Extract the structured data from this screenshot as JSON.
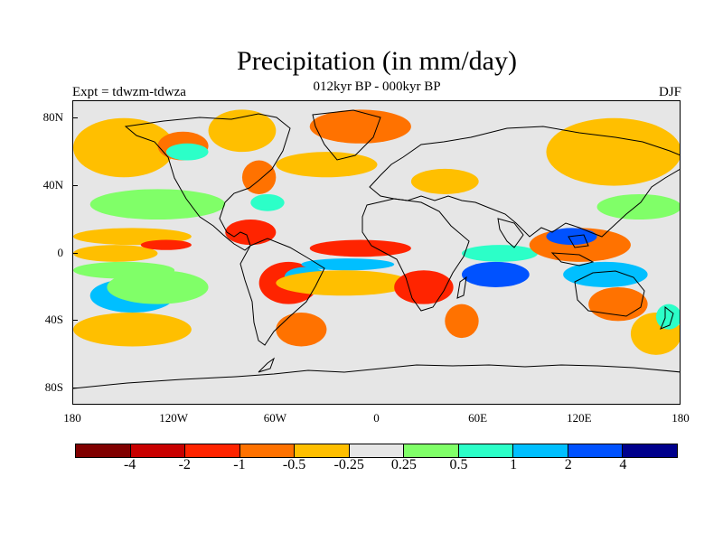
{
  "title": "Precipitation (in mm/day)",
  "subtitle": "012kyr BP - 000kyr BP",
  "left_string": "Expt = tdwzm-tdwza",
  "right_string": "DJF",
  "y_axis_labels": [
    {
      "text": "80N",
      "lat": 80
    },
    {
      "text": "40N",
      "lat": 40
    },
    {
      "text": "0",
      "lat": 0
    },
    {
      "text": "40S",
      "lat": -40
    },
    {
      "text": "80S",
      "lat": -80
    }
  ],
  "x_axis_labels": [
    {
      "text": "180",
      "lon": -180
    },
    {
      "text": "120W",
      "lon": -120
    },
    {
      "text": "60W",
      "lon": -60
    },
    {
      "text": "0",
      "lon": 0
    },
    {
      "text": "60E",
      "lon": 60
    },
    {
      "text": "120E",
      "lon": 120
    },
    {
      "text": "180",
      "lon": 180
    }
  ],
  "colorbar": {
    "colors": [
      "#800000",
      "#c80000",
      "#ff2400",
      "#ff7200",
      "#ffbf00",
      "#e6e6e6",
      "#80ff68",
      "#2cffc8",
      "#00bfff",
      "#0052ff",
      "#00008c"
    ],
    "labels": [
      "-4",
      "-2",
      "-1",
      "-0.5",
      "-0.25",
      "0.25",
      "0.5",
      "1",
      "2",
      "4"
    ]
  },
  "chart_data": {
    "type": "heatmap",
    "title": "Precipitation (in mm/day)",
    "subtitle": "012kyr BP - 000kyr BP",
    "experiment": "Expt = tdwzm-tdwza",
    "season": "DJF",
    "xlim": [
      -180,
      180
    ],
    "ylim": [
      -90,
      90
    ],
    "contour_levels": [
      -4,
      -2,
      -1,
      -0.5,
      -0.25,
      0.25,
      0.5,
      1,
      2,
      4
    ],
    "regions": [
      {
        "value": 0.3,
        "lon": [
          -180,
          -120
        ],
        "lat": [
          -15,
          -5
        ]
      },
      {
        "value": -0.5,
        "lon": [
          -180,
          -130
        ],
        "lat": [
          -5,
          5
        ]
      },
      {
        "value": 1.5,
        "lon": [
          -170,
          -120
        ],
        "lat": [
          -35,
          -15
        ]
      },
      {
        "value": -0.5,
        "lon": [
          -180,
          -110
        ],
        "lat": [
          -55,
          -35
        ]
      },
      {
        "value": 0.4,
        "lon": [
          -160,
          -100
        ],
        "lat": [
          -30,
          -10
        ]
      },
      {
        "value": -0.4,
        "lon": [
          -180,
          -110
        ],
        "lat": [
          5,
          15
        ]
      },
      {
        "value": -2,
        "lon": [
          -140,
          -110
        ],
        "lat": [
          2,
          8
        ]
      },
      {
        "value": 0.4,
        "lon": [
          -170,
          -90
        ],
        "lat": [
          20,
          38
        ]
      },
      {
        "value": -0.4,
        "lon": [
          -180,
          -120
        ],
        "lat": [
          45,
          80
        ]
      },
      {
        "value": -1,
        "lon": [
          -130,
          -100
        ],
        "lat": [
          55,
          72
        ]
      },
      {
        "value": 0.5,
        "lon": [
          -125,
          -100
        ],
        "lat": [
          55,
          65
        ]
      },
      {
        "value": -0.4,
        "lon": [
          -100,
          -60
        ],
        "lat": [
          60,
          85
        ]
      },
      {
        "value": -1,
        "lon": [
          -80,
          -60
        ],
        "lat": [
          35,
          55
        ]
      },
      {
        "value": 0.6,
        "lon": [
          -75,
          -55
        ],
        "lat": [
          25,
          35
        ]
      },
      {
        "value": -1.5,
        "lon": [
          -90,
          -60
        ],
        "lat": [
          5,
          20
        ]
      },
      {
        "value": -1.5,
        "lon": [
          -70,
          -35
        ],
        "lat": [
          -30,
          -5
        ]
      },
      {
        "value": 1.5,
        "lon": [
          -55,
          -30
        ],
        "lat": [
          -20,
          -8
        ]
      },
      {
        "value": -0.6,
        "lon": [
          -60,
          -30
        ],
        "lat": [
          -55,
          -35
        ]
      },
      {
        "value": -2,
        "lon": [
          -40,
          20
        ],
        "lat": [
          -2,
          8
        ]
      },
      {
        "value": 1.5,
        "lon": [
          -45,
          10
        ],
        "lat": [
          -10,
          -3
        ]
      },
      {
        "value": -0.4,
        "lon": [
          -60,
          20
        ],
        "lat": [
          -25,
          -10
        ]
      },
      {
        "value": -1,
        "lon": [
          -40,
          20
        ],
        "lat": [
          65,
          85
        ]
      },
      {
        "value": -0.5,
        "lon": [
          -60,
          0
        ],
        "lat": [
          45,
          60
        ]
      },
      {
        "value": -0.5,
        "lon": [
          20,
          60
        ],
        "lat": [
          35,
          50
        ]
      },
      {
        "value": -2,
        "lon": [
          10,
          45
        ],
        "lat": [
          -30,
          -10
        ]
      },
      {
        "value": -1,
        "lon": [
          40,
          60
        ],
        "lat": [
          -50,
          -30
        ]
      },
      {
        "value": 2,
        "lon": [
          50,
          90
        ],
        "lat": [
          -20,
          -5
        ]
      },
      {
        "value": 0.5,
        "lon": [
          50,
          95
        ],
        "lat": [
          -5,
          5
        ]
      },
      {
        "value": -1,
        "lon": [
          90,
          150
        ],
        "lat": [
          -5,
          15
        ]
      },
      {
        "value": 2,
        "lon": [
          100,
          130
        ],
        "lat": [
          5,
          15
        ]
      },
      {
        "value": 1.5,
        "lon": [
          110,
          160
        ],
        "lat": [
          -20,
          -5
        ]
      },
      {
        "value": -1,
        "lon": [
          125,
          160
        ],
        "lat": [
          -40,
          -20
        ]
      },
      {
        "value": -0.5,
        "lon": [
          100,
          180
        ],
        "lat": [
          40,
          80
        ]
      },
      {
        "value": 0.4,
        "lon": [
          130,
          180
        ],
        "lat": [
          20,
          35
        ]
      },
      {
        "value": -0.5,
        "lon": [
          150,
          180
        ],
        "lat": [
          -60,
          -35
        ]
      },
      {
        "value": 0.6,
        "lon": [
          165,
          180
        ],
        "lat": [
          -45,
          -30
        ]
      }
    ]
  }
}
